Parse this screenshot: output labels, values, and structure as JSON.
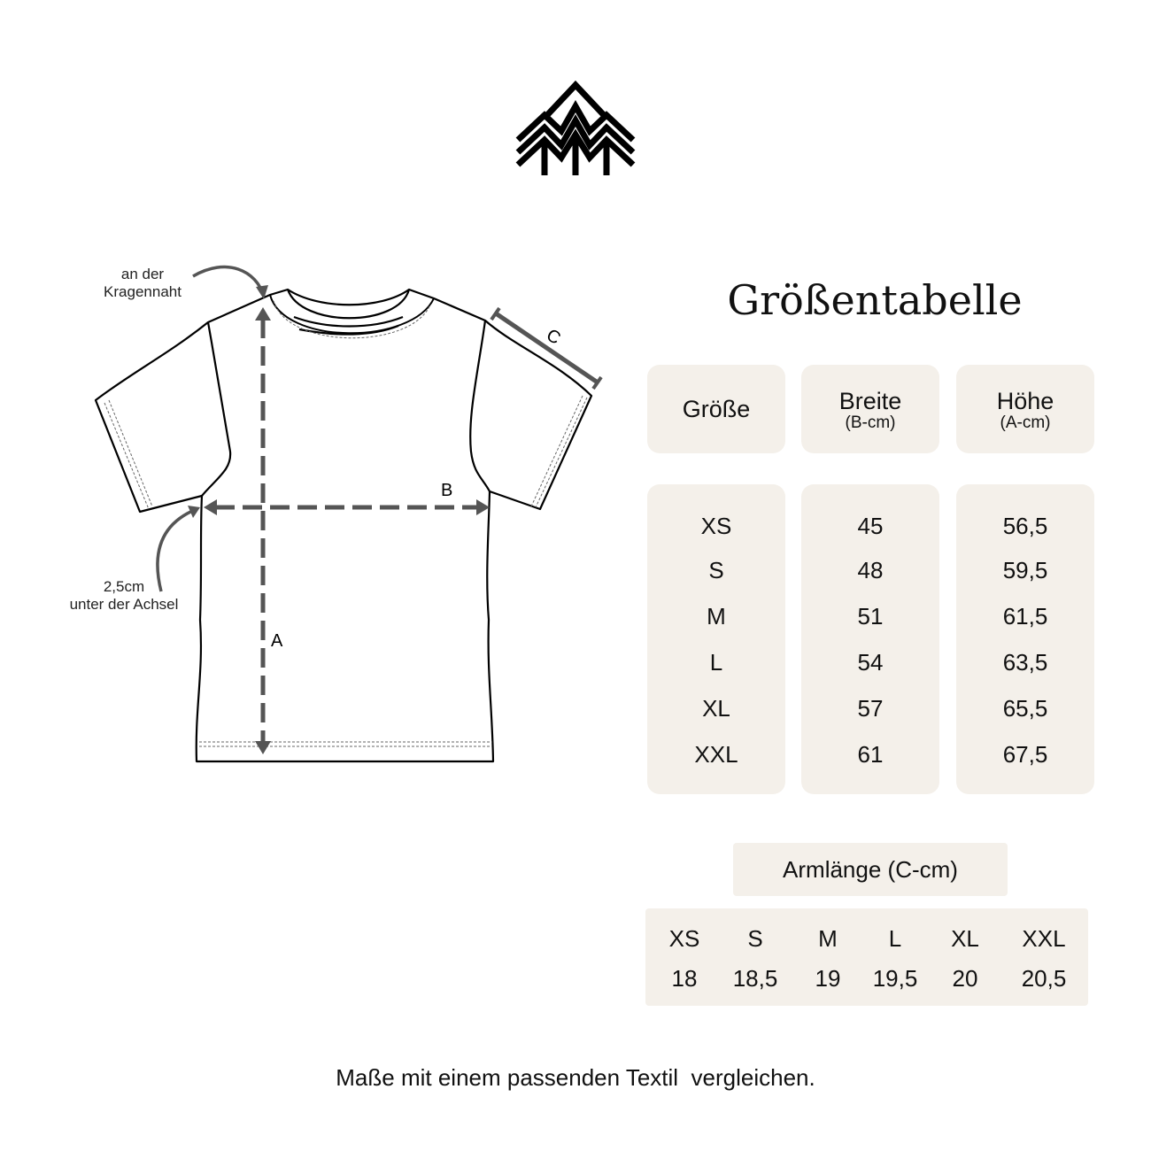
{
  "logo": {
    "name": "tree-logo"
  },
  "title": "Größentabelle",
  "diagram": {
    "note_collar": [
      "an der",
      "Kragennaht"
    ],
    "note_armpit": [
      "2,5cm",
      "unter der Achsel"
    ],
    "label_a": "A",
    "label_b": "B",
    "label_c": "C",
    "arrow_color": "#555555"
  },
  "table": {
    "headers": [
      {
        "main": "Größe",
        "sub": ""
      },
      {
        "main": "Breite",
        "sub": "(B-cm)"
      },
      {
        "main": "Höhe",
        "sub": "(A-cm)"
      }
    ],
    "sizes": [
      "XS",
      "S",
      "M",
      "L",
      "XL",
      "XXL"
    ],
    "breite": [
      "45",
      "48",
      "51",
      "54",
      "57",
      "61"
    ],
    "hoehe": [
      "56,5",
      "59,5",
      "61,5",
      "63,5",
      "65,5",
      "67,5"
    ]
  },
  "arm": {
    "header": "Armlänge (C-cm)",
    "sizes": [
      "XS",
      "S",
      "M",
      "L",
      "XL",
      "XXL"
    ],
    "values": [
      "18",
      "18,5",
      "19",
      "19,5",
      "20",
      "20,5"
    ]
  },
  "footer": "Maße mit einem passenden Textil  vergleichen.",
  "colors": {
    "panel": "#f4f0ea",
    "text": "#111111"
  }
}
